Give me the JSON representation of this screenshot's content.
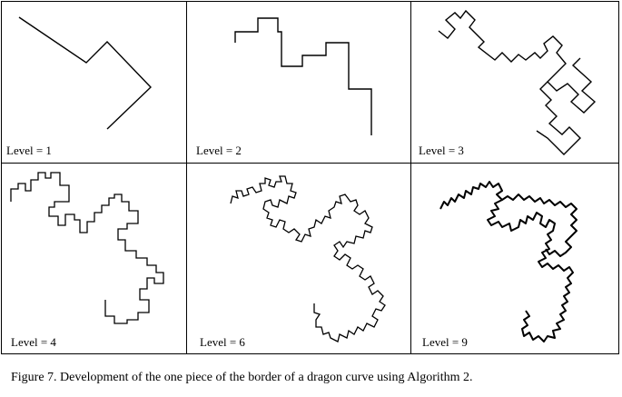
{
  "panels": [
    {
      "label": "Level = 1",
      "level": 1
    },
    {
      "label": "Level = 2",
      "level": 2
    },
    {
      "label": "Level = 3",
      "level": 3
    },
    {
      "label": "Level = 4",
      "level": 4
    },
    {
      "label": "Level = 6",
      "level": 6
    },
    {
      "label": "Level = 9",
      "level": 9
    }
  ],
  "caption": "Figure 7.  Development of the one piece of the border of a dragon curve using Algorithm 2.",
  "colors": {
    "stroke": "#000000",
    "background": "#ffffff"
  }
}
